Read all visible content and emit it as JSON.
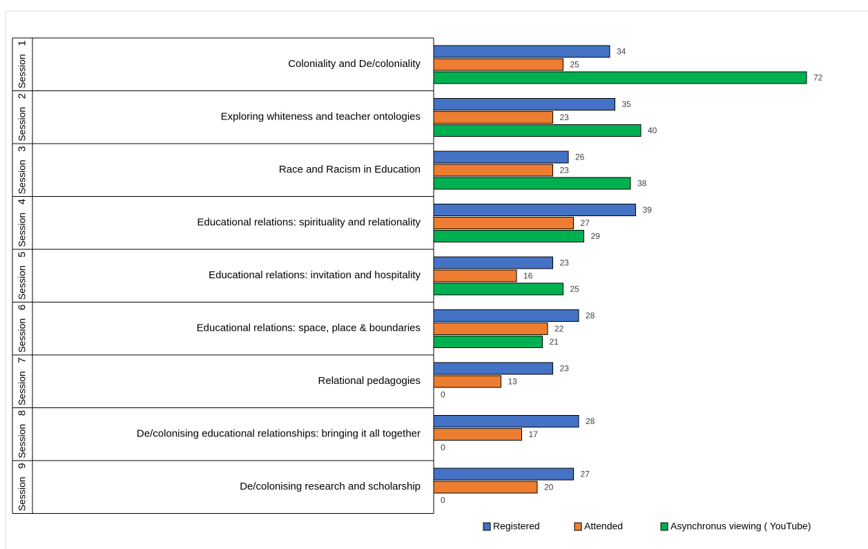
{
  "chart_data": {
    "type": "bar",
    "orientation": "horizontal",
    "session_word": "Session",
    "sessions": [
      {
        "number": "1",
        "title": "Coloniality and De/coloniality"
      },
      {
        "number": "2",
        "title": "Exploring whiteness and teacher ontologies"
      },
      {
        "number": "3",
        "title": "Race and Racism in Education"
      },
      {
        "number": "4",
        "title": "Educational relations: spirituality and relationality"
      },
      {
        "number": "5",
        "title": "Educational relations: invitation and hospitality"
      },
      {
        "number": "6",
        "title": "Educational relations: space, place & boundaries"
      },
      {
        "number": "7",
        "title": "Relational pedagogies"
      },
      {
        "number": "8",
        "title": "De/colonising educational relationships: bringing it all together"
      },
      {
        "number": "9",
        "title": "De/colonising research and scholarship"
      }
    ],
    "series": [
      {
        "name": "Registered",
        "color": "#4472C4",
        "values": [
          34,
          35,
          26,
          39,
          23,
          28,
          23,
          28,
          27
        ]
      },
      {
        "name": "Attended",
        "color": "#ED7D31",
        "values": [
          25,
          23,
          23,
          27,
          16,
          22,
          13,
          17,
          20
        ]
      },
      {
        "name": "Asynchronus viewing ( YouTube)",
        "color": "#00B050",
        "values": [
          72,
          40,
          38,
          29,
          25,
          21,
          0,
          0,
          0
        ]
      }
    ],
    "xlim": [
      0,
      80
    ],
    "grid": false,
    "legend_position": "bottom-right"
  }
}
